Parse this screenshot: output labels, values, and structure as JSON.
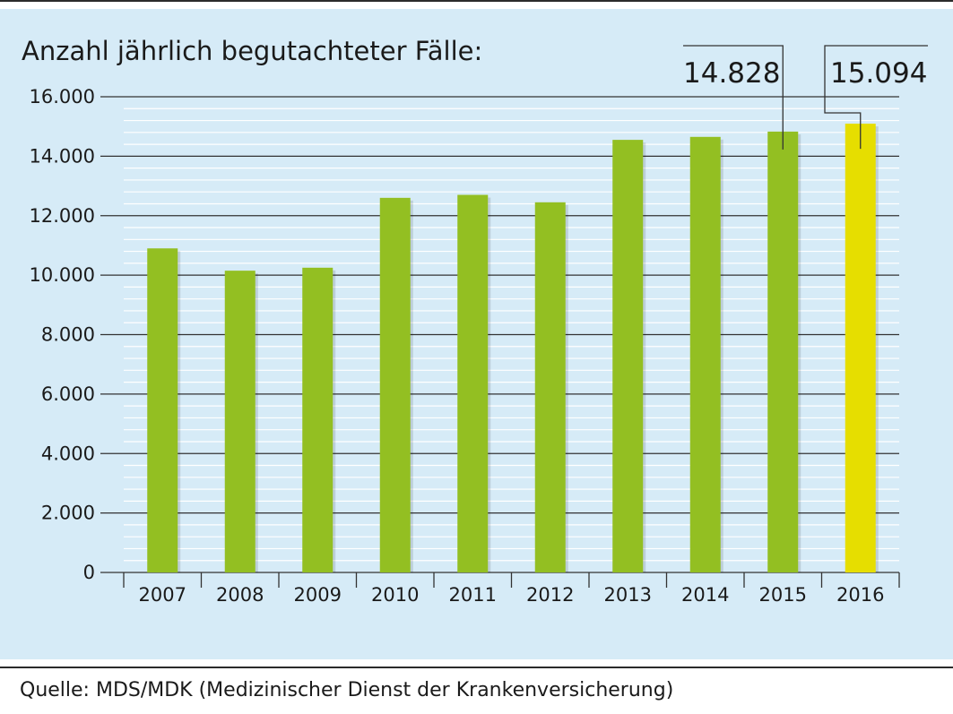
{
  "chart_data": {
    "type": "bar",
    "title": "Anzahl jährlich begutachteter Fälle:",
    "categories": [
      "2007",
      "2008",
      "2009",
      "2010",
      "2011",
      "2012",
      "2013",
      "2014",
      "2015",
      "2016"
    ],
    "values": [
      10900,
      10150,
      10250,
      12600,
      12700,
      12450,
      14550,
      14650,
      14828,
      15094
    ],
    "ylim": [
      0,
      16000
    ],
    "yticks": [
      0,
      2000,
      4000,
      6000,
      8000,
      10000,
      12000,
      14000,
      16000
    ],
    "ytick_labels": [
      "0",
      "2.000",
      "4.000",
      "6.000",
      "8.000",
      "10.000",
      "12.000",
      "14.000",
      "16.000"
    ],
    "grid": true,
    "colors": {
      "bar": "#93bf22",
      "highlight": "#e6de00",
      "background": "#d6ebf7",
      "grid": "#ffffff"
    },
    "highlight_index": 9,
    "annotations": [
      {
        "category": "2015",
        "label": "14.828"
      },
      {
        "category": "2016",
        "label": "15.094"
      }
    ]
  },
  "source": "Quelle: MDS/MDK (Medizinischer Dienst der Krankenversicherung)"
}
